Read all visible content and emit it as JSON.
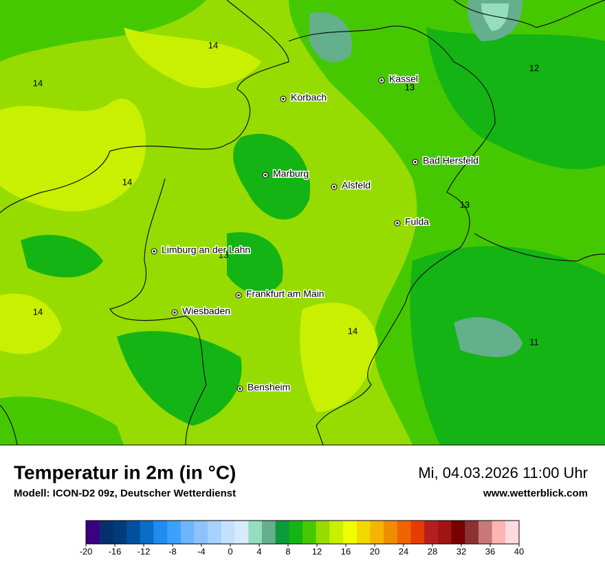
{
  "map": {
    "cities": [
      "Kassel",
      "Korbach",
      "Marburg",
      "Alsfeld",
      "Bad Hersfeld",
      "Fulda",
      "Limburg an der Lahn",
      "Frankfurt am Main",
      "Wiesbaden",
      "Bensheim"
    ],
    "isotherm_labels": [
      14,
      14,
      12,
      13,
      14,
      13,
      13,
      14,
      14,
      11
    ]
  },
  "footer": {
    "title": "Temperatur in 2m (in °C)",
    "model": "Modell: ICON-D2 09z, Deutscher Wetterdienst",
    "datetime": "Mi, 04.03.2026 11:00 Uhr",
    "website": "www.wetterblick.com"
  },
  "colorbar": {
    "range": [
      -20,
      40
    ],
    "ticks": [
      -20,
      -16,
      -12,
      -8,
      -4,
      0,
      4,
      8,
      12,
      16,
      20,
      24,
      28,
      32,
      36,
      40
    ],
    "colors": [
      "#3c0082",
      "#05306e",
      "#003c78",
      "#0050a0",
      "#0a6ec8",
      "#1e8cf0",
      "#3ca0ff",
      "#6eb4ff",
      "#8cc3ff",
      "#a5d2ff",
      "#c3e1ff",
      "#d7ebff",
      "#96dcbe",
      "#64af8c",
      "#0a9b3c",
      "#14b414",
      "#46c800",
      "#96dc00",
      "#c8f000",
      "#f0ff00",
      "#f5d700",
      "#f5b400",
      "#f08c00",
      "#f06400",
      "#e63c00",
      "#b41e1e",
      "#a01414",
      "#780000",
      "#8c3232",
      "#c87878",
      "#ffb4b4",
      "#ffdcdc"
    ]
  }
}
